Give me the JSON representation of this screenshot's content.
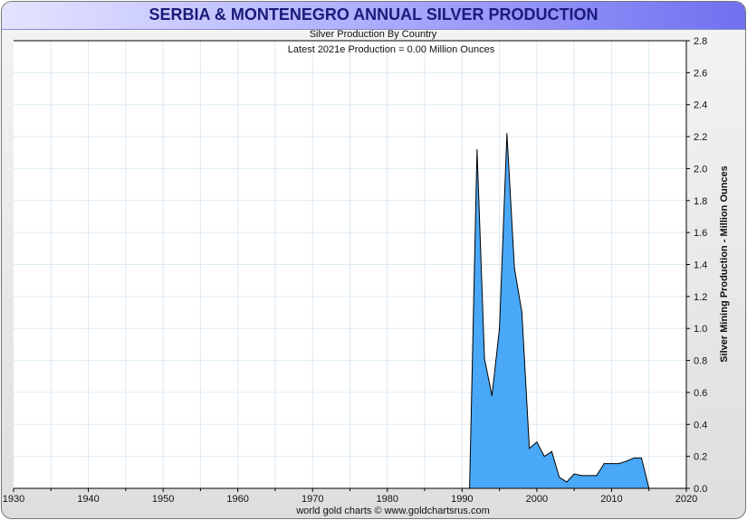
{
  "chart_data": {
    "type": "area",
    "title": "SERBIA & MONTENEGRO ANNUAL SILVER PRODUCTION",
    "subtitle": "Silver Production By Country",
    "annotation": "Latest 2021e Production = 0.00 Million Ounces",
    "xlabel": "",
    "ylabel": "Silver Mining Production - Million Ounces",
    "footer": "world gold charts © www.goldchartsrus.com",
    "xlim": [
      1930,
      2020
    ],
    "ylim": [
      0,
      2.8
    ],
    "x_ticks": [
      "1930",
      "1940",
      "1950",
      "1960",
      "1970",
      "1980",
      "1990",
      "2000",
      "2010",
      "2020"
    ],
    "y_ticks": [
      "0.0",
      "0.2",
      "0.4",
      "0.6",
      "0.8",
      "1.0",
      "1.2",
      "1.4",
      "1.6",
      "1.8",
      "2.0",
      "2.2",
      "2.4",
      "2.6",
      "2.8"
    ],
    "grid": true,
    "fill_color": "#4aa8f8",
    "series": [
      {
        "name": "Serbia & Montenegro",
        "x": [
          1991,
          1992,
          1993,
          1994,
          1995,
          1996,
          1997,
          1998,
          1999,
          2000,
          2001,
          2002,
          2003,
          2004,
          2005,
          2006,
          2007,
          2008,
          2009,
          2010,
          2011,
          2012,
          2013,
          2014,
          2015
        ],
        "values": [
          0,
          2.12,
          0.81,
          0.58,
          1.0,
          2.22,
          1.38,
          1.1,
          0.25,
          0.29,
          0.2,
          0.23,
          0.07,
          0.04,
          0.09,
          0.08,
          0.08,
          0.08,
          0.155,
          0.155,
          0.155,
          0.17,
          0.19,
          0.19,
          0
        ]
      }
    ]
  }
}
